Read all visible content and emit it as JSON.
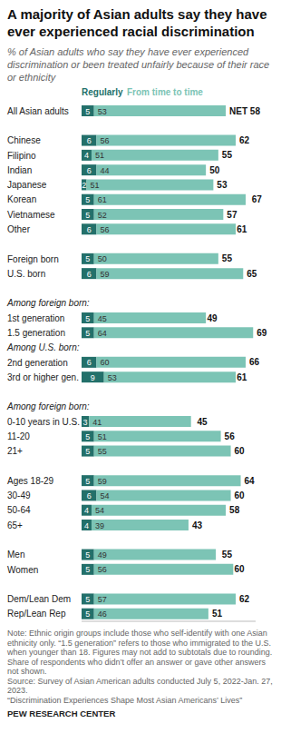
{
  "chart_data": {
    "type": "bar",
    "orientation": "horizontal",
    "stacked": true,
    "data_labels": true,
    "tick_labels": "y",
    "grid": false,
    "title": "A majority of Asian adults say they have ever experienced racial discrimination",
    "subtitle": "% of Asian adults who say they have ever experienced discrimination or been treated unfairly because of their race or ethnicity",
    "categories": [
      "All Asian adults",
      null,
      "Chinese",
      "Filipino",
      "Indian",
      "Japanese",
      "Korean",
      "Vietnamese",
      "Other",
      null,
      "Foreign born",
      "U.S. born",
      null,
      "Among foreign born:",
      "1st generation",
      "1.5 generation",
      "Among U.S. born:",
      "2nd generation",
      "3rd or higher gen.",
      null,
      "Among foreign born:",
      "0-10 years in U.S.",
      "11-20",
      "21+",
      null,
      "Ages 18-29",
      "30-49",
      "50-64",
      "65+",
      null,
      "Men",
      "Women",
      null,
      "Dem/Lean Dem",
      "Rep/Lean Rep"
    ],
    "series": [
      {
        "name": "Regularly",
        "color": "#23706a",
        "values": [
          5,
          null,
          6,
          4,
          6,
          2,
          5,
          5,
          6,
          null,
          5,
          6,
          null,
          null,
          5,
          5,
          null,
          6,
          9,
          null,
          null,
          3,
          5,
          5,
          null,
          5,
          6,
          4,
          4,
          null,
          5,
          5,
          null,
          5,
          5
        ]
      },
      {
        "name": "From time to time",
        "color": "#7cc4b5",
        "values": [
          53,
          null,
          56,
          51,
          44,
          51,
          61,
          52,
          56,
          null,
          50,
          59,
          null,
          null,
          45,
          64,
          null,
          60,
          53,
          null,
          null,
          41,
          51,
          55,
          null,
          59,
          54,
          54,
          39,
          null,
          49,
          56,
          null,
          57,
          46
        ]
      }
    ],
    "net": {
      "values": [
        58,
        null,
        62,
        55,
        50,
        53,
        67,
        57,
        61,
        null,
        55,
        65,
        null,
        null,
        49,
        69,
        null,
        66,
        61,
        null,
        null,
        45,
        56,
        60,
        null,
        64,
        60,
        58,
        43,
        null,
        55,
        60,
        null,
        62,
        51
      ],
      "value_labels": [
        "NET 58",
        null,
        "62",
        "55",
        "50",
        "53",
        "67",
        "57",
        "61",
        null,
        "55",
        "65",
        null,
        null,
        "49",
        "69",
        null,
        "66",
        "61",
        null,
        null,
        "45",
        "56",
        "60",
        null,
        "64",
        "60",
        "58",
        "43",
        null,
        "55",
        "60",
        null,
        "62",
        "51"
      ]
    },
    "xlim": [
      0,
      70
    ],
    "notes": [
      "Note: Ethnic origin groups include those who self-identify with one Asian ethnicity only. “1.5 generation” refers to those who immigrated to the U.S. when younger than 18. Figures may not add to subtotals due to rounding. Share of respondents who didn’t offer an answer or gave other answers not shown.",
      "Source: Survey of Asian American adults conducted July 5, 2022-Jan. 27, 2023.",
      "“Discrimination Experiences Shape Most Asian Americans’ Lives”"
    ],
    "credit": "PEW RESEARCH CENTER"
  }
}
